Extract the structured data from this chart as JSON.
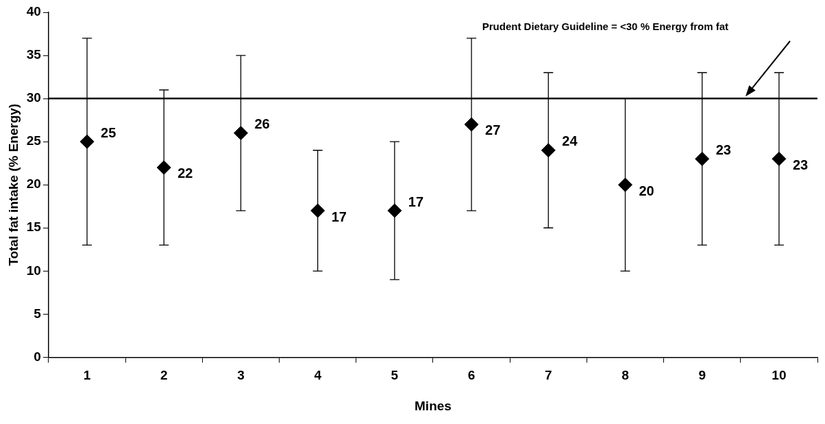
{
  "chart_data": {
    "type": "scatter",
    "xlabel": "Mines",
    "ylabel": "Total fat intake (% Energy)",
    "categories": [
      "1",
      "2",
      "3",
      "4",
      "5",
      "6",
      "7",
      "8",
      "9",
      "10"
    ],
    "series": [
      {
        "color": "#000000",
        "values": [
          25,
          22,
          26,
          17,
          17,
          27,
          24,
          20,
          23,
          23
        ],
        "errors": [
          [
            13,
            37
          ],
          [
            13,
            31
          ],
          [
            17,
            35
          ],
          [
            10,
            24
          ],
          [
            9,
            25
          ],
          [
            17,
            37
          ],
          [
            15,
            33
          ],
          [
            10,
            30
          ],
          [
            13,
            33
          ],
          [
            13,
            33
          ]
        ]
      }
    ],
    "ylim": [
      0,
      40
    ],
    "yticks": [
      0,
      5,
      10,
      15,
      20,
      25,
      30,
      35,
      40
    ],
    "ref_lines": [
      {
        "axis": "y",
        "value": 30,
        "label": "Prudent Dietary Guideline = <30 % Energy from fat",
        "color": "#000000",
        "line_style": "solid"
      }
    ],
    "data_labels": true,
    "marker": "diamond",
    "grid": false,
    "legend": false
  }
}
